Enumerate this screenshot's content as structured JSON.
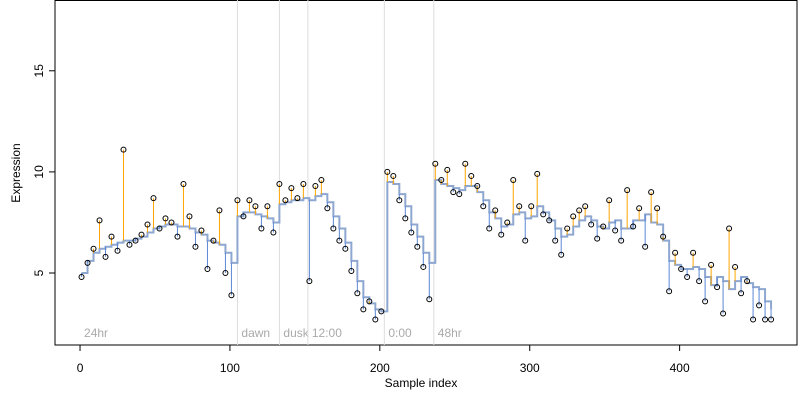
{
  "chart_data": {
    "type": "residual-step",
    "xlabel": "Sample index",
    "ylabel": "Expression",
    "xlim": [
      -16.7,
      478.3
    ],
    "ylim": [
      1.44,
      18.5
    ],
    "xticks": [
      0,
      100,
      200,
      300,
      400
    ],
    "yticks": [
      5,
      10,
      15
    ],
    "fit_color": "#8ea7d0",
    "above_color": "#ffa500",
    "below_color": "#5b87d6",
    "events": [
      {
        "x": 0,
        "label": "24hr",
        "line": false
      },
      {
        "x": 105,
        "label": "dawn",
        "line": true
      },
      {
        "x": 133,
        "label": "dusk",
        "line": true
      },
      {
        "x": 152,
        "label": "12:00",
        "line": true
      },
      {
        "x": 203,
        "label": "0:00",
        "line": true
      },
      {
        "x": 236,
        "label": "48hr",
        "line": true
      }
    ],
    "x": [
      1,
      5,
      9,
      13,
      17,
      21,
      25,
      29,
      33,
      37,
      41,
      45,
      49,
      53,
      57,
      61,
      65,
      69,
      73,
      77,
      81,
      85,
      89,
      93,
      97,
      101,
      105,
      109,
      113,
      117,
      121,
      125,
      129,
      133,
      137,
      141,
      145,
      149,
      153,
      157,
      161,
      165,
      169,
      173,
      177,
      181,
      185,
      189,
      193,
      197,
      201,
      205,
      209,
      213,
      217,
      221,
      225,
      229,
      233,
      237,
      241,
      245,
      249,
      253,
      257,
      261,
      265,
      269,
      273,
      277,
      281,
      285,
      289,
      293,
      297,
      301,
      305,
      309,
      313,
      317,
      321,
      325,
      329,
      333,
      337,
      341,
      345,
      349,
      353,
      357,
      361,
      365,
      369,
      373,
      377,
      381,
      385,
      389,
      393,
      397,
      401,
      405,
      409,
      413,
      417,
      421,
      425,
      429,
      433,
      437,
      441,
      445,
      449,
      453,
      457,
      461
    ],
    "values": [
      4.8,
      5.5,
      6.2,
      7.6,
      5.8,
      6.8,
      6.1,
      11.1,
      6.4,
      6.6,
      6.9,
      7.4,
      8.7,
      7.2,
      7.7,
      7.5,
      6.8,
      9.4,
      7.8,
      6.3,
      7.1,
      5.2,
      6.6,
      8.1,
      5.0,
      3.9,
      8.6,
      7.8,
      8.6,
      8.3,
      7.2,
      8.3,
      7.0,
      9.4,
      8.6,
      9.2,
      8.7,
      9.4,
      4.6,
      9.3,
      9.6,
      8.2,
      7.2,
      6.6,
      6.2,
      5.1,
      4.0,
      3.2,
      3.6,
      2.7,
      3.1,
      10.0,
      9.8,
      8.6,
      7.7,
      7.0,
      6.3,
      5.3,
      3.7,
      10.4,
      9.6,
      10.1,
      9.0,
      8.9,
      10.4,
      9.8,
      9.3,
      8.3,
      7.2,
      8.1,
      6.9,
      7.5,
      9.6,
      8.3,
      6.6,
      8.3,
      9.9,
      7.9,
      7.6,
      6.6,
      5.9,
      7.2,
      7.8,
      8.1,
      8.3,
      7.4,
      6.7,
      7.3,
      8.6,
      7.1,
      6.6,
      9.1,
      7.3,
      8.2,
      6.3,
      9.0,
      8.2,
      6.8,
      4.1,
      6.0,
      5.2,
      4.8,
      6.0,
      4.6,
      3.6,
      5.4,
      4.3,
      3.0,
      7.2,
      5.3,
      4.0,
      4.6,
      2.7,
      3.4,
      2.7,
      2.7
    ],
    "fit": [
      5.0,
      5.6,
      6.0,
      6.2,
      6.3,
      6.4,
      6.5,
      6.6,
      6.6,
      6.7,
      6.8,
      7.0,
      7.2,
      7.3,
      7.4,
      7.4,
      7.3,
      7.3,
      7.2,
      7.0,
      6.9,
      6.6,
      6.5,
      6.4,
      6.0,
      5.5,
      7.8,
      8.0,
      8.0,
      7.9,
      7.8,
      7.7,
      7.5,
      8.4,
      8.5,
      8.6,
      8.6,
      8.7,
      8.6,
      8.8,
      8.9,
      8.5,
      7.8,
      7.2,
      6.5,
      5.6,
      4.6,
      3.8,
      3.5,
      3.2,
      3.1,
      9.5,
      9.4,
      8.9,
      8.3,
      7.4,
      6.8,
      6.0,
      5.5,
      9.6,
      9.4,
      9.3,
      9.2,
      9.1,
      9.3,
      9.3,
      9.0,
      8.6,
      8.0,
      7.7,
      7.3,
      7.4,
      7.9,
      8.0,
      7.7,
      7.8,
      8.3,
      8.0,
      7.6,
      7.2,
      6.8,
      6.9,
      7.3,
      7.6,
      7.8,
      7.6,
      7.3,
      7.2,
      7.5,
      7.6,
      7.2,
      7.2,
      7.6,
      7.6,
      7.9,
      7.5,
      7.4,
      6.6,
      5.6,
      5.4,
      5.2,
      5.2,
      5.3,
      5.2,
      4.8,
      4.4,
      4.8,
      4.6,
      4.2,
      4.6,
      4.8,
      4.5,
      4.3,
      4.2,
      3.6,
      3.2
    ]
  }
}
